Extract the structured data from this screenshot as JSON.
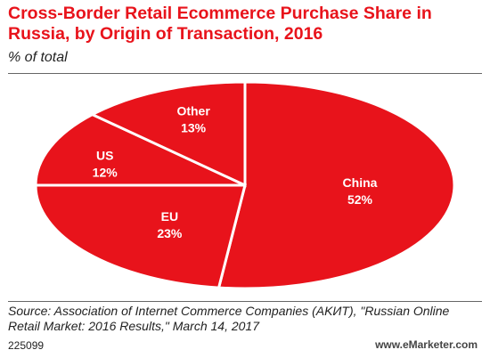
{
  "title": "Cross-Border Retail Ecommerce Purchase Share in Russia, by Origin of Transaction, 2016",
  "subtitle": "% of total",
  "source": "Source: Association of Internet Commerce Companies (AKИT), \"Russian Online Retail Market: 2016 Results,\" March 14, 2017",
  "code": "225099",
  "brand": "www.eMarketer.com",
  "colors": {
    "slice": "#e8131b",
    "separator": "#ffffff",
    "title": "#e8131b"
  },
  "chart_data": {
    "type": "pie",
    "categories": [
      "China",
      "EU",
      "US",
      "Other"
    ],
    "values": [
      52,
      23,
      12,
      13
    ],
    "value_labels": [
      "52%",
      "23%",
      "12%",
      "13%"
    ],
    "title": "Cross-Border Retail Ecommerce Purchase Share in Russia, by Origin of Transaction, 2016",
    "unit": "% of total"
  }
}
